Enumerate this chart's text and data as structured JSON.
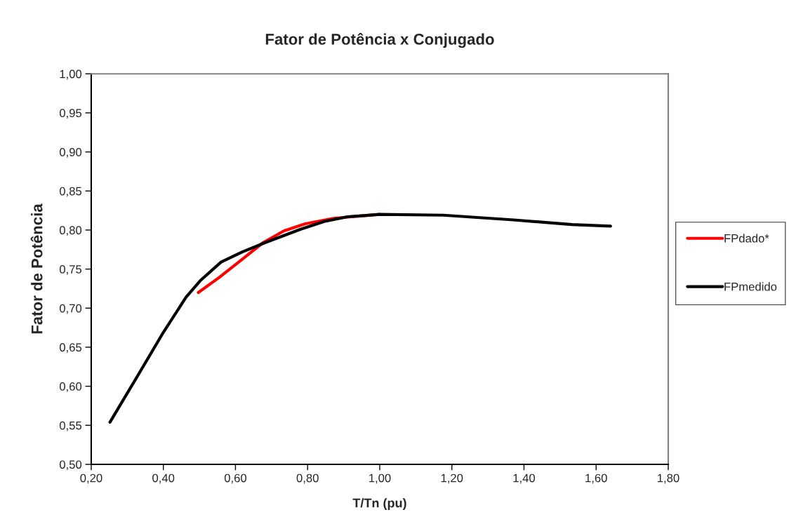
{
  "chart_data": {
    "type": "line",
    "title": "Fator de Potência x Conjugado",
    "xlabel": "T/Tn (pu)",
    "ylabel": "Fator de Potência",
    "xlim": [
      0.2,
      1.8
    ],
    "ylim": [
      0.5,
      1.0
    ],
    "xticks": [
      {
        "value": 0.2,
        "label": "0,20"
      },
      {
        "value": 0.4,
        "label": "0,40"
      },
      {
        "value": 0.6,
        "label": "0,60"
      },
      {
        "value": 0.8,
        "label": "0,80"
      },
      {
        "value": 1.0,
        "label": "1,00"
      },
      {
        "value": 1.2,
        "label": "1,20"
      },
      {
        "value": 1.4,
        "label": "1,40"
      },
      {
        "value": 1.6,
        "label": "1,60"
      },
      {
        "value": 1.8,
        "label": "1,80"
      }
    ],
    "yticks": [
      {
        "value": 0.5,
        "label": "0,50"
      },
      {
        "value": 0.55,
        "label": "0,55"
      },
      {
        "value": 0.6,
        "label": "0,60"
      },
      {
        "value": 0.65,
        "label": "0,65"
      },
      {
        "value": 0.7,
        "label": "0,70"
      },
      {
        "value": 0.75,
        "label": "0,75"
      },
      {
        "value": 0.8,
        "label": "0,80"
      },
      {
        "value": 0.85,
        "label": "0,85"
      },
      {
        "value": 0.9,
        "label": "0,90"
      },
      {
        "value": 0.95,
        "label": "0,95"
      },
      {
        "value": 1.0,
        "label": "1,00"
      }
    ],
    "grid": false,
    "legend": "right",
    "marker": "none",
    "line_style": "solid",
    "series": [
      {
        "name": "FPdado*",
        "color": "#ff0000",
        "x": [
          0.497,
          0.554,
          0.612,
          0.677,
          0.735,
          0.794,
          0.872,
          1.0
        ],
        "values": [
          0.72,
          0.739,
          0.76,
          0.784,
          0.799,
          0.808,
          0.815,
          0.82
        ]
      },
      {
        "name": "FPmedido",
        "color": "#000000",
        "x": [
          0.252,
          0.327,
          0.4,
          0.463,
          0.502,
          0.56,
          0.619,
          0.683,
          0.781,
          0.846,
          0.911,
          1.0,
          1.176,
          1.371,
          1.533,
          1.64
        ],
        "values": [
          0.554,
          0.612,
          0.669,
          0.714,
          0.735,
          0.759,
          0.772,
          0.784,
          0.801,
          0.811,
          0.817,
          0.82,
          0.819,
          0.813,
          0.807,
          0.805
        ]
      }
    ]
  }
}
